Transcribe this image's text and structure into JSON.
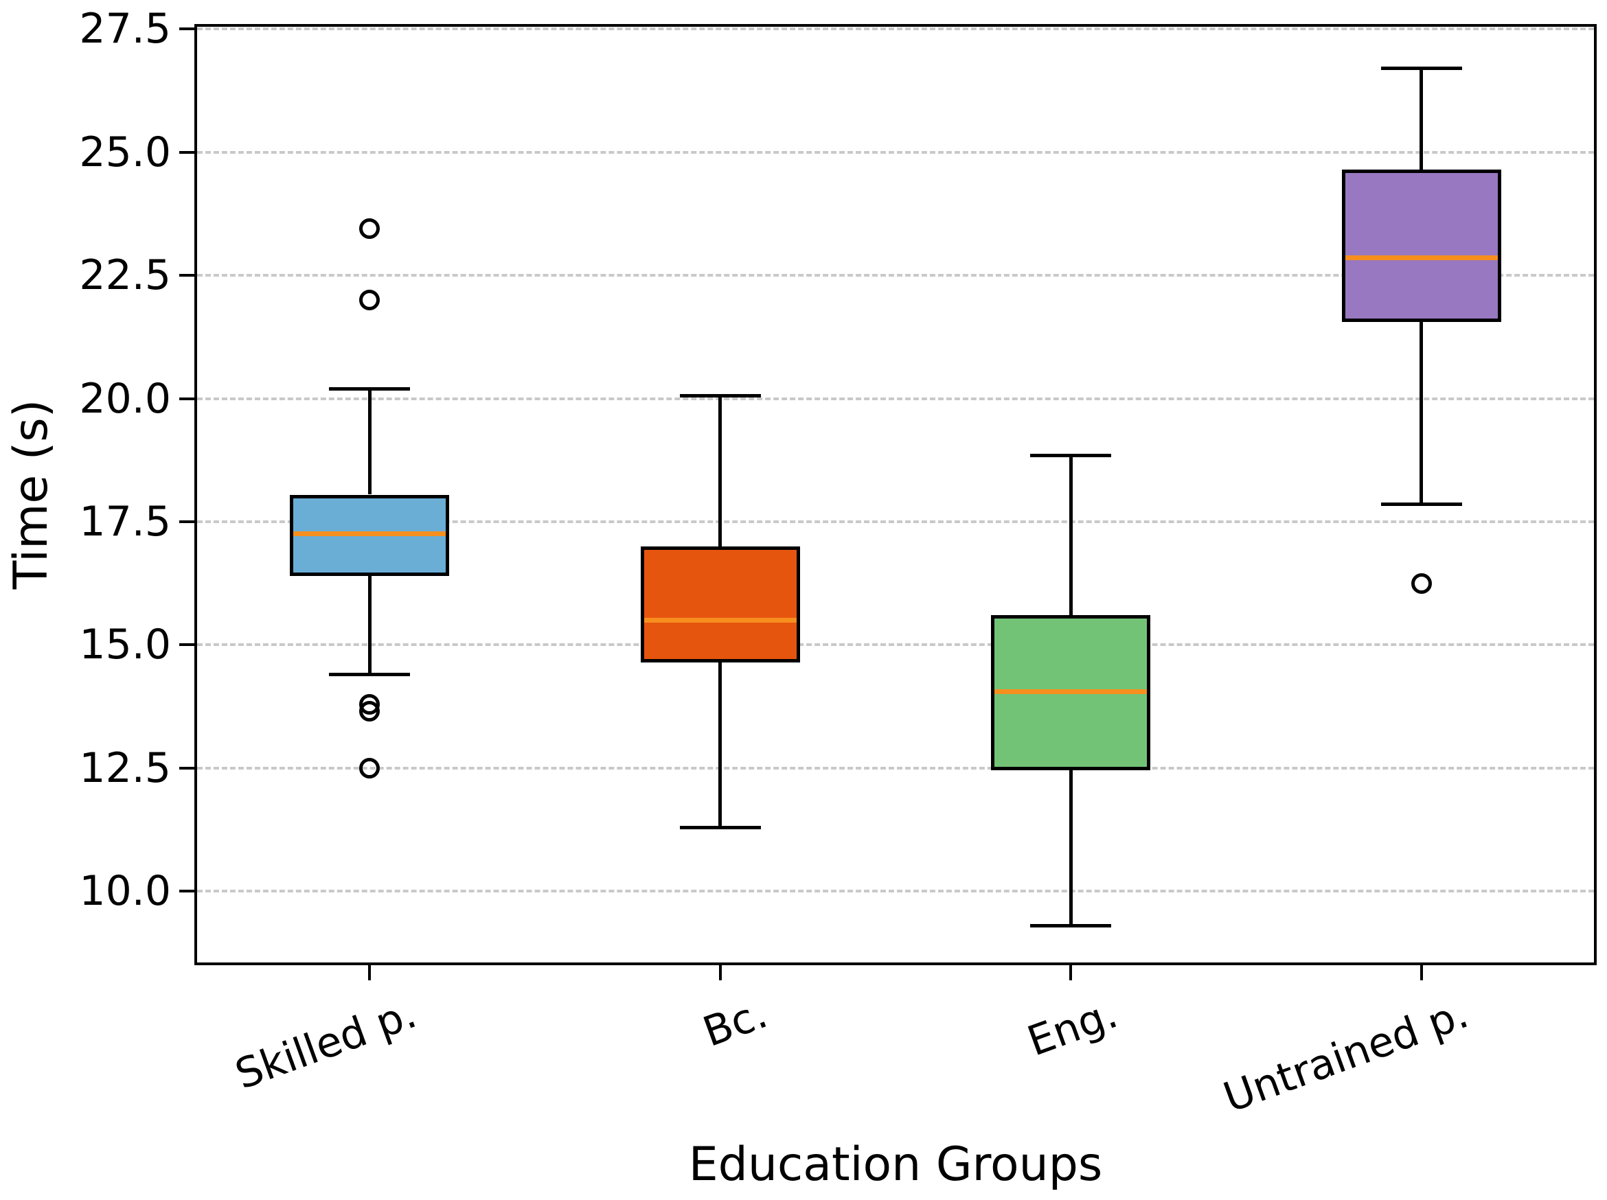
{
  "figure": {
    "title": "",
    "background_color": "#ffffff"
  },
  "chart_data": {
    "type": "boxplot",
    "title": "",
    "xlabel": "Education Groups",
    "ylabel": "Time (s)",
    "categories": [
      "Skilled p.",
      "Bc.",
      "Eng.",
      "Untrained p."
    ],
    "yticks": [
      10.0,
      12.5,
      15.0,
      17.5,
      20.0,
      22.5,
      25.0,
      27.5
    ],
    "ytick_labels": [
      "10.0",
      "12.5",
      "15.0",
      "17.5",
      "20.0",
      "22.5",
      "25.0",
      "27.5"
    ],
    "ylim": [
      8.5,
      27.6
    ],
    "grid": {
      "axis": "y",
      "style": "dashed",
      "color": "#c9c9c9",
      "visible": true
    },
    "x_tick_rotation_deg": -20,
    "legend": "none",
    "box_edge_color": "#000000",
    "median_color": "#f78f1e",
    "outlier_marker": "circle",
    "series": [
      {
        "label": "Skilled p.",
        "color": "#6aaed6",
        "whisker_low": 14.4,
        "q1": 16.4,
        "median": 17.25,
        "q3": 18.05,
        "whisker_high": 20.2,
        "outliers": [
          23.45,
          22.0,
          13.8,
          13.65,
          12.5
        ]
      },
      {
        "label": "Bc.",
        "color": "#e6550d",
        "whisker_low": 11.3,
        "q1": 14.65,
        "median": 15.5,
        "q3": 17.0,
        "whisker_high": 20.05,
        "outliers": []
      },
      {
        "label": "Eng.",
        "color": "#73c377",
        "whisker_low": 9.3,
        "q1": 12.45,
        "median": 14.05,
        "q3": 15.6,
        "whisker_high": 18.85,
        "outliers": []
      },
      {
        "label": "Untrained p.",
        "color": "#9878c0",
        "whisker_low": 17.85,
        "q1": 21.55,
        "median": 22.85,
        "q3": 24.65,
        "whisker_high": 26.7,
        "outliers": [
          16.25
        ]
      }
    ]
  }
}
